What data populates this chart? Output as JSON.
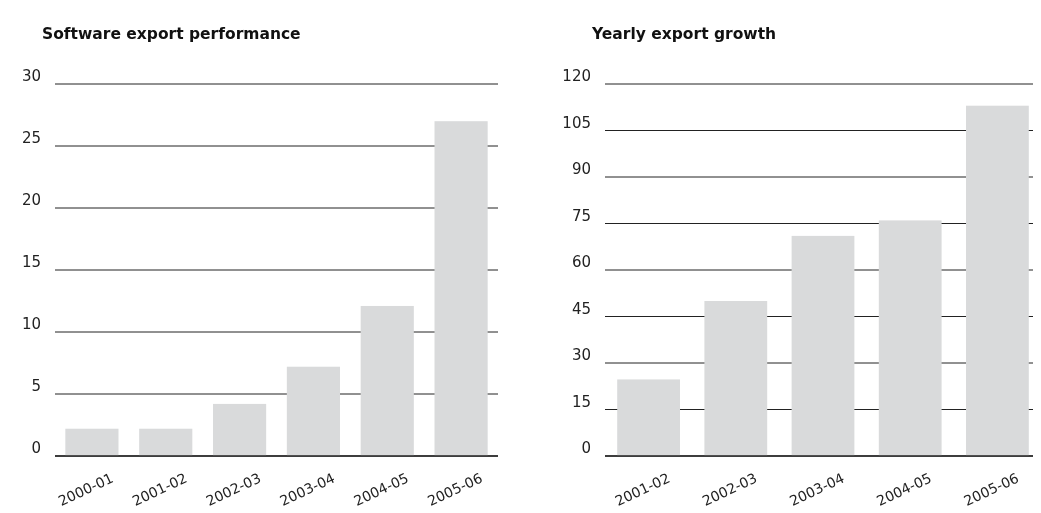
{
  "chart_data": [
    {
      "type": "bar",
      "title": "Software export performance",
      "categories": [
        "2000-01",
        "2001-02",
        "2002-03",
        "2003-04",
        "2004-05",
        "2005-06"
      ],
      "values": [
        2.2,
        2.2,
        4.2,
        7.2,
        12.1,
        27
      ],
      "color": "#d9dadb",
      "ylim": [
        0,
        30
      ],
      "yticks": [
        0,
        5,
        10,
        15,
        20,
        25,
        30
      ],
      "grid": "y"
    },
    {
      "type": "bar",
      "title": "Yearly export growth",
      "categories": [
        "2001-02",
        "2002-03",
        "2003-04",
        "2004-05",
        "2005-06"
      ],
      "values": [
        24.7,
        50,
        71,
        76,
        113
      ],
      "color": "#d9dadb",
      "ylim": [
        0,
        120
      ],
      "yticks": [
        0,
        15,
        30,
        45,
        60,
        75,
        90,
        105,
        120
      ],
      "grid": "y"
    }
  ]
}
